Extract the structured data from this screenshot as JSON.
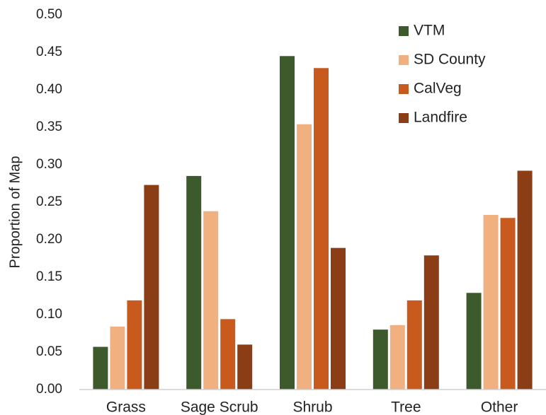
{
  "chart_data": {
    "type": "bar",
    "y_label": "Proportion of Map",
    "categories": [
      "Grass",
      "Sage Scrub",
      "Shrub",
      "Tree",
      "Other"
    ],
    "series": [
      {
        "name": "VTM",
        "color": "#3d5a2c",
        "values": [
          0.057,
          0.285,
          0.445,
          0.08,
          0.129
        ]
      },
      {
        "name": "SD County",
        "color": "#f0b080",
        "values": [
          0.084,
          0.238,
          0.354,
          0.086,
          0.233
        ]
      },
      {
        "name": "CalVeg",
        "color": "#c85a1e",
        "values": [
          0.119,
          0.094,
          0.429,
          0.119,
          0.229
        ]
      },
      {
        "name": "Landfire",
        "color": "#8b3e16",
        "values": [
          0.273,
          0.06,
          0.189,
          0.179,
          0.292
        ]
      }
    ],
    "ylim": [
      0,
      0.5
    ],
    "yticks": [
      {
        "value": 0,
        "label": "0.00"
      },
      {
        "value": 0.05,
        "label": "0.05"
      },
      {
        "value": 0.1,
        "label": "0.10"
      },
      {
        "value": 0.15,
        "label": "0.15"
      },
      {
        "value": 0.2,
        "label": "0.20"
      },
      {
        "value": 0.25,
        "label": "0.25"
      },
      {
        "value": 0.3,
        "label": "0.30"
      },
      {
        "value": 0.35,
        "label": "0.35"
      },
      {
        "value": 0.4,
        "label": "0.40"
      },
      {
        "value": 0.45,
        "label": "0.45"
      },
      {
        "value": 0.5,
        "label": "0.50"
      }
    ],
    "grid": false,
    "legend": "top-right"
  }
}
